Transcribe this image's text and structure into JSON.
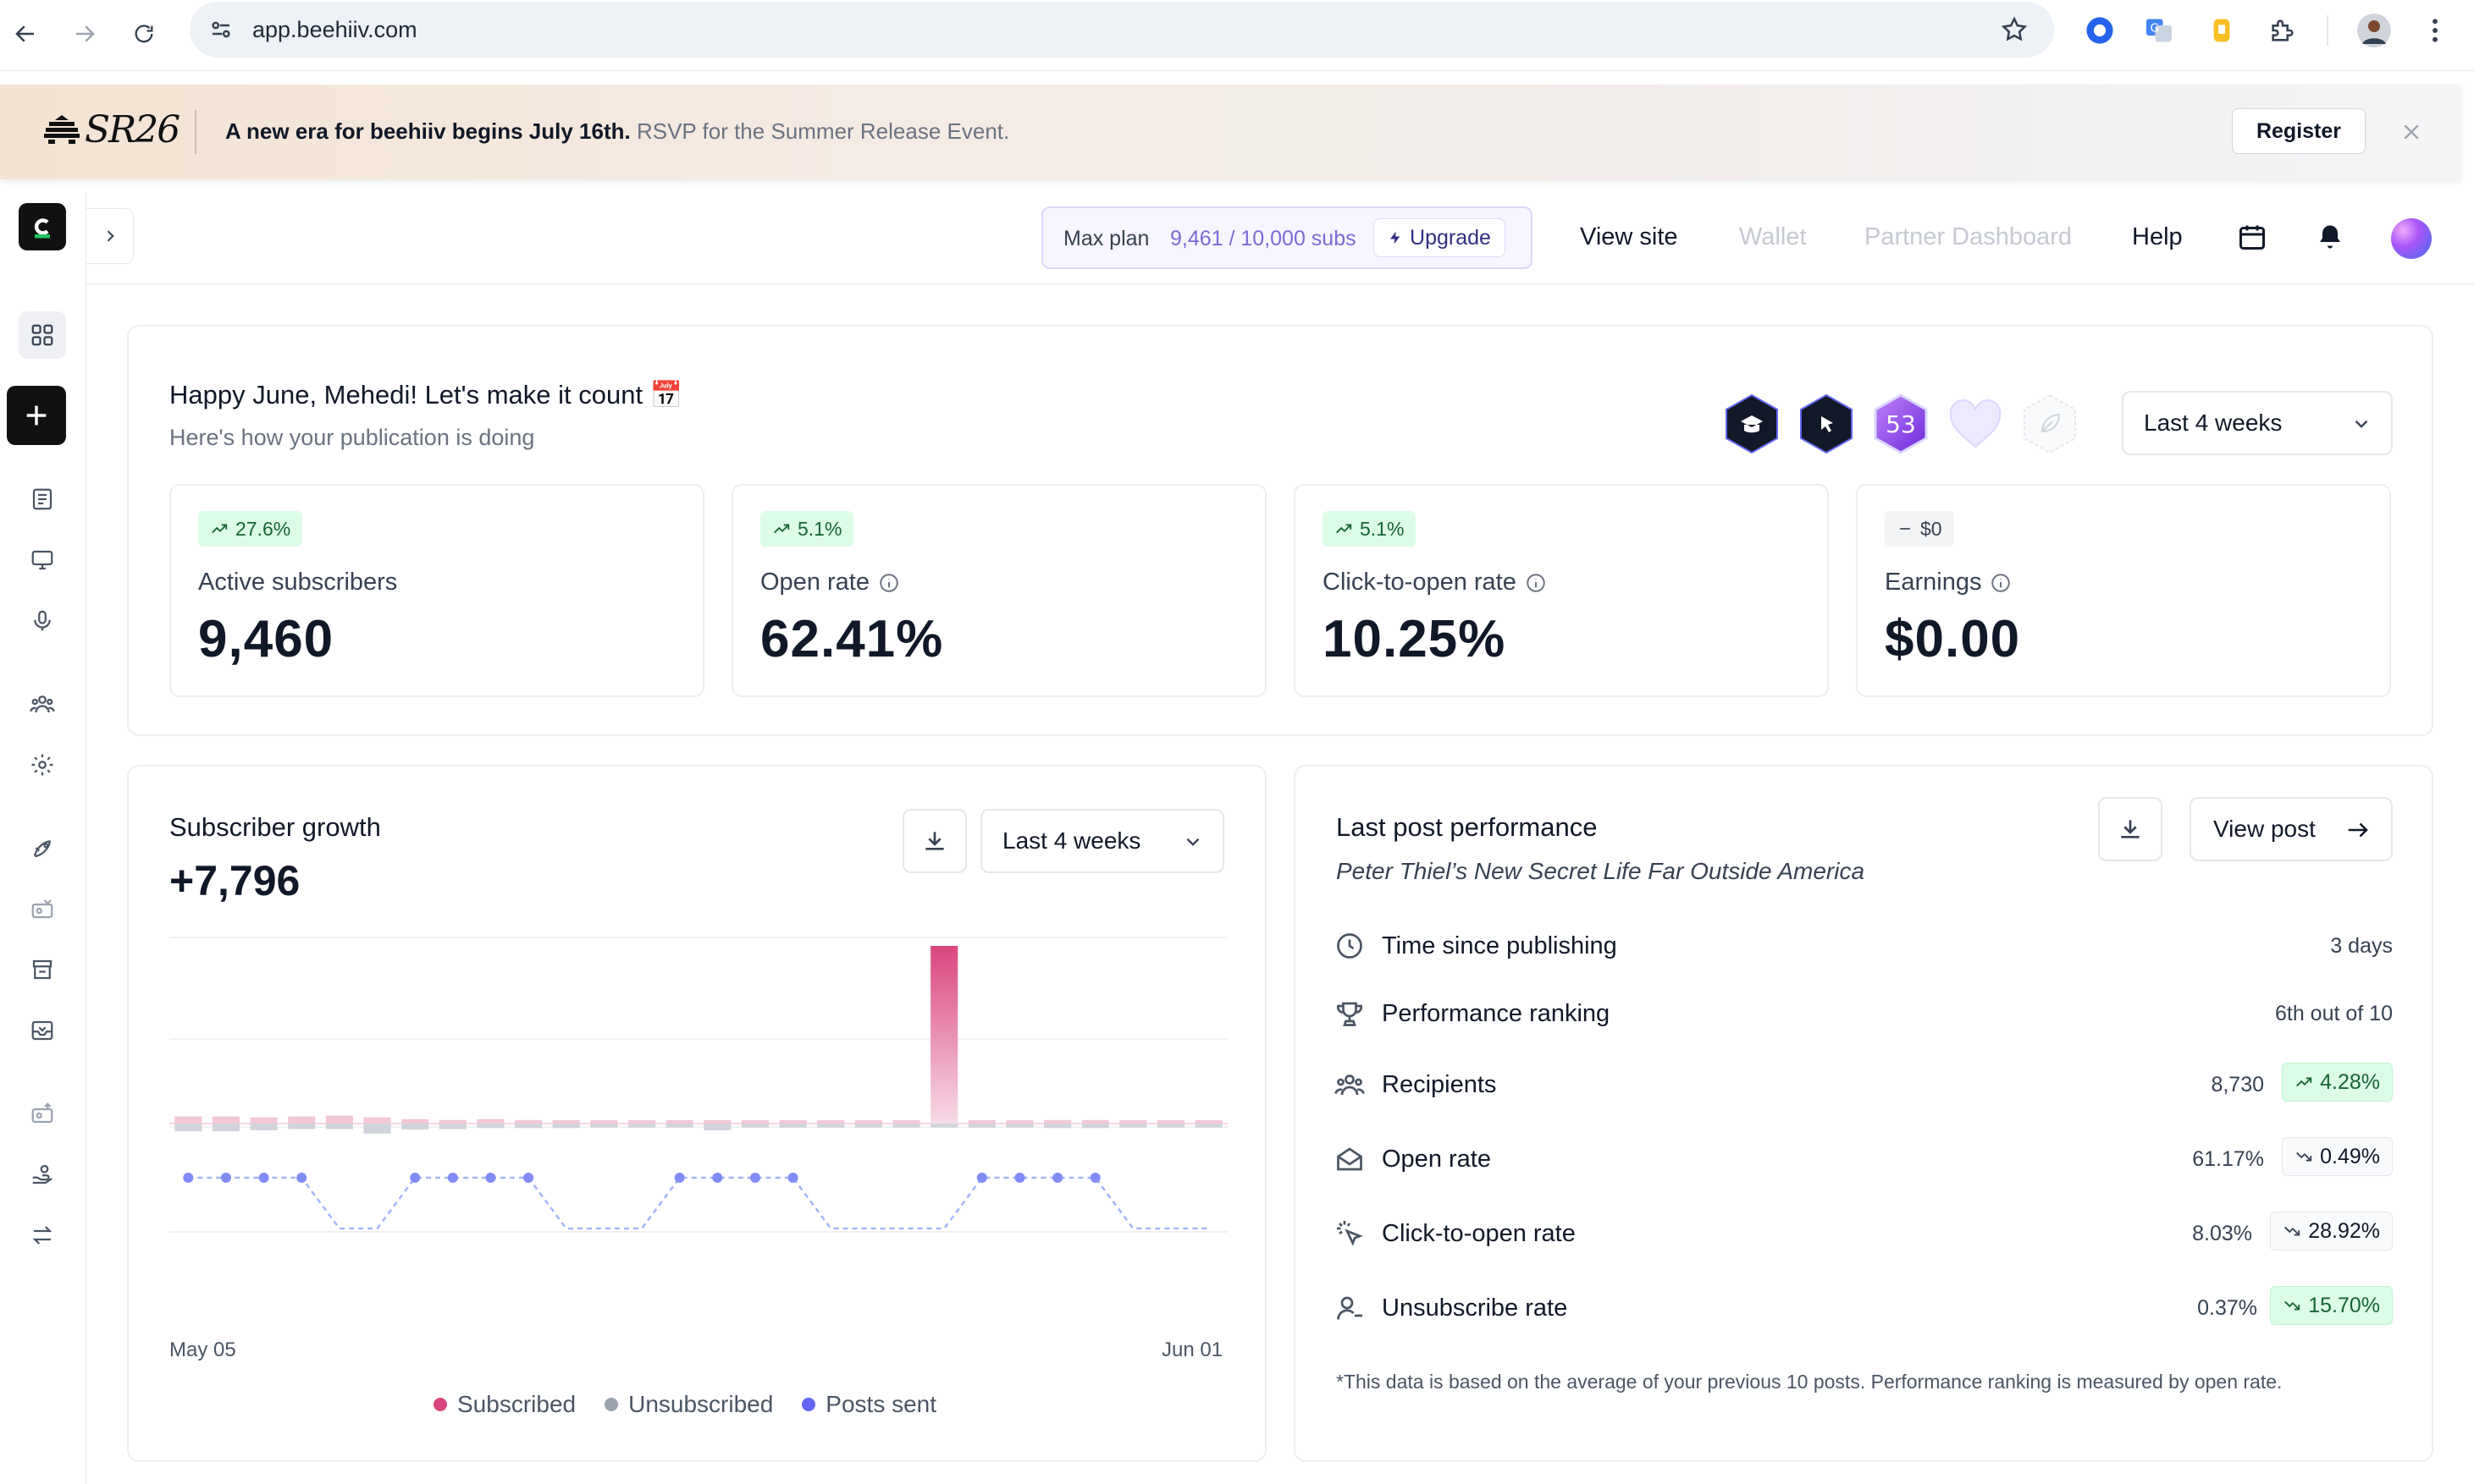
{
  "browser": {
    "url": "app.beehiiv.com"
  },
  "banner": {
    "logo": "SR26",
    "headline": "A new era for beehiiv begins July 16th.",
    "subtext": " RSVP for the Summer Release Event.",
    "register_label": "Register"
  },
  "header": {
    "plan_name": "Max plan",
    "plan_subs": "9,461 / 10,000 subs",
    "upgrade_label": "Upgrade",
    "links": {
      "view_site": "View site",
      "wallet": "Wallet",
      "partner_dashboard": "Partner Dashboard",
      "help": "Help"
    }
  },
  "overview": {
    "greeting": "Happy June, Mehedi! Let's make it count 📅",
    "subtitle": "Here's how your publication is doing",
    "period": "Last 4 weeks",
    "achievement_badges": [
      {
        "icon": "graduation-cap-icon"
      },
      {
        "icon": "cursor-click-icon"
      },
      {
        "label": "53"
      },
      {
        "icon": "heart-icon"
      },
      {
        "icon": "leaf-icon"
      }
    ],
    "stats": [
      {
        "label": "Active subscribers",
        "value": "9,460",
        "change": "27.6%",
        "trend": "up"
      },
      {
        "label": "Open rate",
        "value": "62.41%",
        "change": "5.1%",
        "trend": "up"
      },
      {
        "label": "Click-to-open rate",
        "value": "10.25%",
        "change": "5.1%",
        "trend": "up"
      },
      {
        "label": "Earnings",
        "value": "$0.00",
        "change": "$0",
        "trend": "flat"
      }
    ]
  },
  "growth": {
    "title": "Subscriber growth",
    "total": "+7,796",
    "period": "Last 4 weeks",
    "x_start": "May 05",
    "x_end": "Jun 01",
    "legend": {
      "subscribed": "Subscribed",
      "unsubscribed": "Unsubscribed",
      "posts_sent": "Posts sent"
    },
    "colors": {
      "subscribed": "#d9467f",
      "unsubscribed": "#9ca3af",
      "posts_sent": "#6366f1"
    },
    "subscribed_bars": [
      0.04,
      0.04,
      0.035,
      0.04,
      0.045,
      0.035,
      0.025,
      0.02,
      0.025,
      0.02,
      0.015,
      0.015,
      0.015,
      0.015,
      0.015,
      0.015,
      0.015,
      0.015,
      0.015,
      0.015,
      1.0,
      0.015,
      0.015,
      0.02,
      0.02,
      0.015,
      0.015,
      0.015
    ],
    "unsubscribed_bars": [
      0.2,
      0.2,
      0.15,
      0.1,
      0.1,
      0.3,
      0.12,
      0.1,
      0.05,
      0.05,
      0.05,
      0.03,
      0.03,
      0.03,
      0.15,
      0.03,
      0.03,
      0.03,
      0.03,
      0.03,
      0.03,
      0.03,
      0.03,
      0.05,
      0.05,
      0.03,
      0.03,
      0.03
    ],
    "posts_sent": [
      1,
      1,
      1,
      1,
      0,
      0,
      1,
      1,
      1,
      1,
      0,
      0,
      0,
      1,
      1,
      1,
      1,
      0,
      0,
      0,
      0,
      1,
      1,
      1,
      1,
      0,
      0,
      0
    ]
  },
  "last_post": {
    "title": "Last post performance",
    "post_title": "Peter Thiel’s New Secret Life Far Outside America",
    "view_post_label": "View post",
    "rows": [
      {
        "icon": "clock-icon",
        "label": "Time since publishing",
        "value": "3 days"
      },
      {
        "icon": "trophy-icon",
        "label": "Performance ranking",
        "value": "6th out of 10"
      },
      {
        "icon": "users-icon",
        "label": "Recipients",
        "value": "8,730",
        "change": "4.28%",
        "trend": "up"
      },
      {
        "icon": "envelope-open-icon",
        "label": "Open rate",
        "value": "61.17%",
        "change": "0.49%",
        "trend": "down"
      },
      {
        "icon": "cursor-click-icon",
        "label": "Click-to-open rate",
        "value": "8.03%",
        "change": "28.92%",
        "trend": "down"
      },
      {
        "icon": "user-minus-icon",
        "label": "Unsubscribe rate",
        "value": "0.37%",
        "change": "15.70%",
        "trend": "down-good"
      }
    ],
    "footnote": "*This data is based on the average of your previous 10 posts. Performance ranking is measured by open rate."
  }
}
